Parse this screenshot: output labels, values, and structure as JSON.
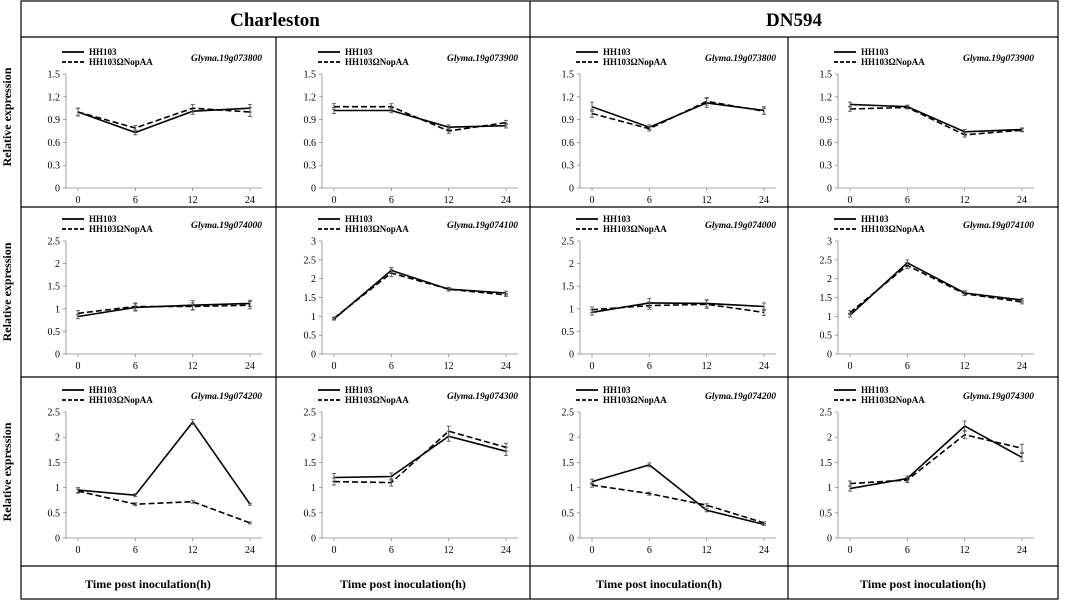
{
  "figure": {
    "cultivars": [
      "Charleston",
      "DN594"
    ],
    "row_ylabel": "Relative expression",
    "col_xlabel": "Time post inoculation(h)"
  },
  "chart_data": [
    {
      "type": "line",
      "row": 0,
      "col": 0,
      "gene": "Glyma.19g073800",
      "categories": [
        "0",
        "6",
        "12",
        "24"
      ],
      "ylim": [
        0,
        1.5
      ],
      "yticks": [
        "0",
        "0.3",
        "0.6",
        "0.9",
        "1.2",
        "1.5"
      ],
      "series": [
        {
          "name": "HH103",
          "style": "solid",
          "values": [
            1.0,
            0.73,
            1.01,
            1.05
          ],
          "errors": [
            0.05,
            0.03,
            0.04,
            0.05
          ]
        },
        {
          "name": "HH103ΩNopAA",
          "style": "dashed",
          "values": [
            1.0,
            0.79,
            1.05,
            1.0
          ],
          "errors": [
            0.05,
            0.03,
            0.05,
            0.06
          ]
        }
      ]
    },
    {
      "type": "line",
      "row": 0,
      "col": 1,
      "gene": "Glyma.19g073900",
      "categories": [
        "0",
        "6",
        "12",
        "24"
      ],
      "ylim": [
        0,
        1.5
      ],
      "yticks": [
        "0",
        "0.3",
        "0.6",
        "0.9",
        "1.2",
        "1.5"
      ],
      "series": [
        {
          "name": "HH103",
          "style": "solid",
          "values": [
            1.02,
            1.02,
            0.8,
            0.82
          ],
          "errors": [
            0.04,
            0.03,
            0.03,
            0.03
          ]
        },
        {
          "name": "HH103ΩNopAA",
          "style": "dashed",
          "values": [
            1.07,
            1.07,
            0.75,
            0.86
          ],
          "errors": [
            0.04,
            0.04,
            0.03,
            0.03
          ]
        }
      ]
    },
    {
      "type": "line",
      "row": 0,
      "col": 2,
      "gene": "Glyma.19g073800",
      "categories": [
        "0",
        "6",
        "12",
        "24"
      ],
      "ylim": [
        0,
        1.5
      ],
      "yticks": [
        "0",
        "0.3",
        "0.6",
        "0.9",
        "1.2",
        "1.5"
      ],
      "series": [
        {
          "name": "HH103",
          "style": "solid",
          "values": [
            1.07,
            0.8,
            1.12,
            1.02
          ],
          "errors": [
            0.06,
            0.03,
            0.06,
            0.05
          ]
        },
        {
          "name": "HH103ΩNopAA",
          "style": "dashed",
          "values": [
            0.98,
            0.78,
            1.14,
            1.01
          ],
          "errors": [
            0.05,
            0.03,
            0.05,
            0.04
          ]
        }
      ]
    },
    {
      "type": "line",
      "row": 0,
      "col": 3,
      "gene": "Glyma.19g073900",
      "categories": [
        "0",
        "6",
        "12",
        "24"
      ],
      "ylim": [
        0,
        1.5
      ],
      "yticks": [
        "0",
        "0.3",
        "0.6",
        "0.9",
        "1.2",
        "1.5"
      ],
      "series": [
        {
          "name": "HH103",
          "style": "solid",
          "values": [
            1.1,
            1.07,
            0.74,
            0.77
          ],
          "errors": [
            0.03,
            0.02,
            0.03,
            0.02
          ]
        },
        {
          "name": "HH103ΩNopAA",
          "style": "dashed",
          "values": [
            1.04,
            1.06,
            0.7,
            0.76
          ],
          "errors": [
            0.03,
            0.02,
            0.03,
            0.02
          ]
        }
      ]
    },
    {
      "type": "line",
      "row": 1,
      "col": 0,
      "gene": "Glyma.19g074000",
      "categories": [
        "0",
        "6",
        "12",
        "24"
      ],
      "ylim": [
        0,
        2.5
      ],
      "yticks": [
        "0",
        "0.5",
        "1",
        "1.5",
        "2",
        "2.5"
      ],
      "series": [
        {
          "name": "HH103",
          "style": "solid",
          "values": [
            0.83,
            1.03,
            1.08,
            1.12
          ],
          "errors": [
            0.05,
            0.08,
            0.1,
            0.07
          ]
        },
        {
          "name": "HH103ΩNopAA",
          "style": "dashed",
          "values": [
            0.9,
            1.05,
            1.05,
            1.08
          ],
          "errors": [
            0.06,
            0.08,
            0.08,
            0.08
          ]
        }
      ]
    },
    {
      "type": "line",
      "row": 1,
      "col": 1,
      "gene": "Glyma.19g074100",
      "categories": [
        "0",
        "6",
        "12",
        "24"
      ],
      "ylim": [
        0,
        3
      ],
      "yticks": [
        "0",
        "0.5",
        "1",
        "1.5",
        "2",
        "2.5",
        "3"
      ],
      "series": [
        {
          "name": "HH103",
          "style": "solid",
          "values": [
            0.93,
            2.22,
            1.72,
            1.62
          ],
          "errors": [
            0.03,
            0.08,
            0.04,
            0.05
          ]
        },
        {
          "name": "HH103ΩNopAA",
          "style": "dashed",
          "values": [
            0.95,
            2.15,
            1.72,
            1.57
          ],
          "errors": [
            0.03,
            0.1,
            0.05,
            0.04
          ]
        }
      ]
    },
    {
      "type": "line",
      "row": 1,
      "col": 2,
      "gene": "Glyma.19g074000",
      "categories": [
        "0",
        "6",
        "12",
        "24"
      ],
      "ylim": [
        0,
        2.5
      ],
      "yticks": [
        "0",
        "0.5",
        "1",
        "1.5",
        "2",
        "2.5"
      ],
      "series": [
        {
          "name": "HH103",
          "style": "solid",
          "values": [
            0.92,
            1.13,
            1.12,
            1.05
          ],
          "errors": [
            0.06,
            0.1,
            0.08,
            0.08
          ]
        },
        {
          "name": "HH103ΩNopAA",
          "style": "dashed",
          "values": [
            0.98,
            1.07,
            1.1,
            0.92
          ],
          "errors": [
            0.06,
            0.08,
            0.09,
            0.07
          ]
        }
      ]
    },
    {
      "type": "line",
      "row": 1,
      "col": 3,
      "gene": "Glyma.19g074100",
      "categories": [
        "0",
        "6",
        "12",
        "24"
      ],
      "ylim": [
        0,
        3
      ],
      "yticks": [
        "0",
        "0.5",
        "1",
        "1.5",
        "2",
        "2.5",
        "3"
      ],
      "series": [
        {
          "name": "HH103",
          "style": "solid",
          "values": [
            1.03,
            2.42,
            1.62,
            1.43
          ],
          "errors": [
            0.05,
            0.08,
            0.06,
            0.05
          ]
        },
        {
          "name": "HH103ΩNopAA",
          "style": "dashed",
          "values": [
            1.1,
            2.35,
            1.6,
            1.38
          ],
          "errors": [
            0.05,
            0.08,
            0.05,
            0.05
          ]
        }
      ]
    },
    {
      "type": "line",
      "row": 2,
      "col": 0,
      "gene": "Glyma.19g074200",
      "categories": [
        "0",
        "6",
        "12",
        "24"
      ],
      "ylim": [
        0,
        2.5
      ],
      "yticks": [
        "0",
        "0.5",
        "1",
        "1.5",
        "2",
        "2.5"
      ],
      "series": [
        {
          "name": "HH103",
          "style": "solid",
          "values": [
            0.95,
            0.85,
            2.3,
            0.67
          ],
          "errors": [
            0.05,
            0.03,
            0.05,
            0.02
          ]
        },
        {
          "name": "HH103ΩNopAA",
          "style": "dashed",
          "values": [
            0.93,
            0.67,
            0.72,
            0.3
          ],
          "errors": [
            0.04,
            0.03,
            0.03,
            0.02
          ]
        }
      ]
    },
    {
      "type": "line",
      "row": 2,
      "col": 1,
      "gene": "Glyma.19g074300",
      "categories": [
        "0",
        "6",
        "12",
        "24"
      ],
      "ylim": [
        0,
        2.5
      ],
      "yticks": [
        "0",
        "0.5",
        "1",
        "1.5",
        "2",
        "2.5"
      ],
      "series": [
        {
          "name": "HH103",
          "style": "solid",
          "values": [
            1.2,
            1.22,
            2.02,
            1.72
          ],
          "errors": [
            0.08,
            0.07,
            0.1,
            0.08
          ]
        },
        {
          "name": "HH103ΩNopAA",
          "style": "dashed",
          "values": [
            1.12,
            1.1,
            2.12,
            1.8
          ],
          "errors": [
            0.07,
            0.07,
            0.1,
            0.08
          ]
        }
      ]
    },
    {
      "type": "line",
      "row": 2,
      "col": 2,
      "gene": "Glyma.19g074200",
      "categories": [
        "0",
        "6",
        "12",
        "24"
      ],
      "ylim": [
        0,
        2.5
      ],
      "yticks": [
        "0",
        "0.5",
        "1",
        "1.5",
        "2",
        "2.5"
      ],
      "series": [
        {
          "name": "HH103",
          "style": "solid",
          "values": [
            1.12,
            1.45,
            0.55,
            0.27
          ],
          "errors": [
            0.05,
            0.04,
            0.03,
            0.02
          ]
        },
        {
          "name": "HH103ΩNopAA",
          "style": "dashed",
          "values": [
            1.05,
            0.88,
            0.65,
            0.3
          ],
          "errors": [
            0.04,
            0.03,
            0.03,
            0.02
          ]
        }
      ]
    },
    {
      "type": "line",
      "row": 2,
      "col": 3,
      "gene": "Glyma.19g074300",
      "categories": [
        "0",
        "6",
        "12",
        "24"
      ],
      "ylim": [
        0,
        2.5
      ],
      "yticks": [
        "0",
        "0.5",
        "1",
        "1.5",
        "2",
        "2.5"
      ],
      "series": [
        {
          "name": "HH103",
          "style": "solid",
          "values": [
            0.98,
            1.18,
            2.22,
            1.6
          ],
          "errors": [
            0.05,
            0.05,
            0.1,
            0.08
          ]
        },
        {
          "name": "HH103ΩNopAA",
          "style": "dashed",
          "values": [
            1.08,
            1.15,
            2.05,
            1.78
          ],
          "errors": [
            0.05,
            0.05,
            0.08,
            0.08
          ]
        }
      ]
    }
  ]
}
